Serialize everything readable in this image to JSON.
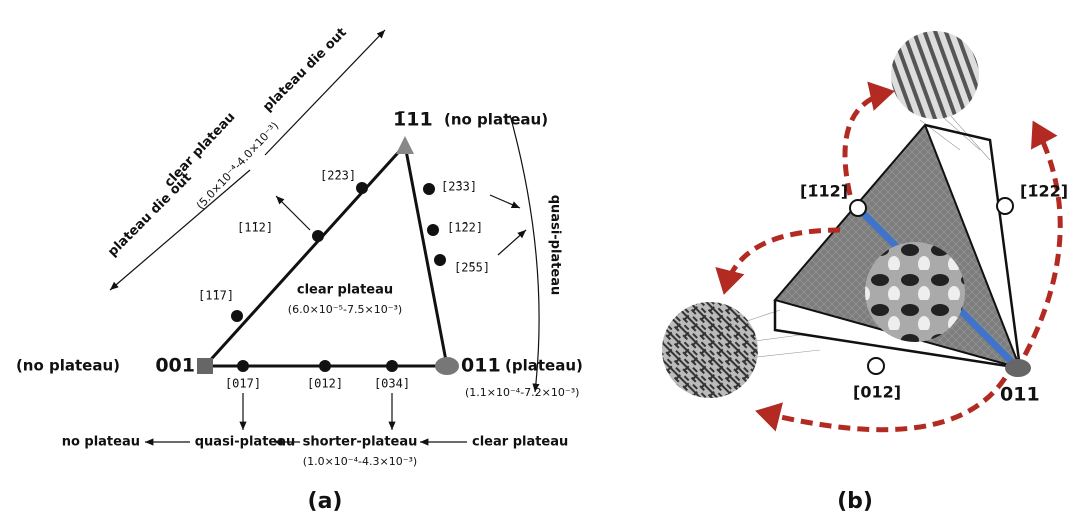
{
  "panel_a": {
    "caption": "(a)",
    "vertices": {
      "v001": "001",
      "v011": "011",
      "v111": "1̄11"
    },
    "notes": {
      "v001": "(no plateau)",
      "v011": "(plateau)",
      "v011_range": "(1.1×10⁻⁴-7.2×10⁻³)",
      "v111": "(no plateau)"
    },
    "points": {
      "p117": "[1̄17]",
      "p112": "[1̄12]",
      "p223": "[2̄23]",
      "p233": "[2̄33]",
      "p122": "[1̄22]",
      "p255": "[2̄55]",
      "p017": "[017]",
      "p012": "[012]",
      "p034": "[034]"
    },
    "center": {
      "label": "clear plateau",
      "range": "(6.0×10⁻⁵-7.5×10⁻³)"
    },
    "upper": {
      "label": "clear plateau",
      "range": "(5.0×10⁻⁴-4.0×10⁻³)",
      "die_left": "plateau die out",
      "die_right": "plateau die out"
    },
    "right_label": "quasi-plateau",
    "bottom_chain": [
      "no plateau",
      "quasi-plateau",
      "shorter-plateau",
      "clear plateau"
    ],
    "bottom_range": "(1.0×10⁻⁴-4.3×10⁻³)"
  },
  "panel_b": {
    "caption": "(b)",
    "labels": {
      "p112": "[1̄12]",
      "p122": "[1̄22]",
      "p012": "[012]",
      "v011": "011"
    }
  }
}
